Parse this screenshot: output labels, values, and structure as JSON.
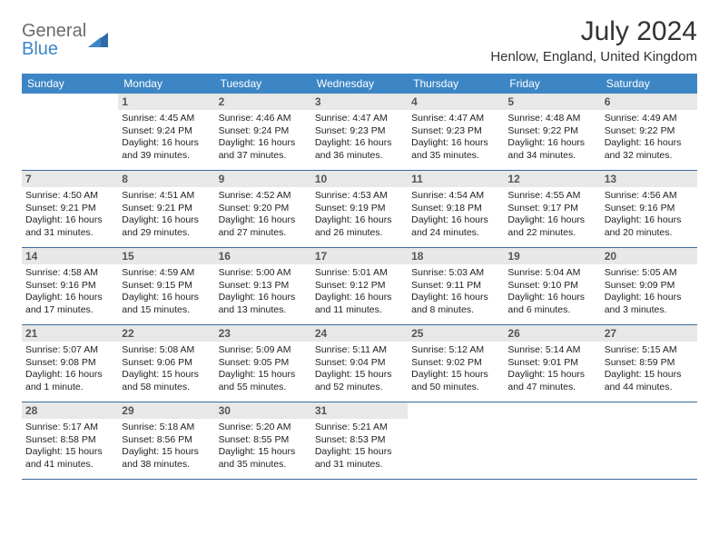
{
  "brand": {
    "name1": "General",
    "name2": "Blue"
  },
  "title": "July 2024",
  "location": "Henlow, England, United Kingdom",
  "colors": {
    "header_bg": "#3d86c6",
    "header_text": "#ffffff",
    "daynum_bg": "#e8e8e8",
    "daynum_text": "#555555",
    "rule": "#3d6a9a",
    "brand_gray": "#6b6b6b",
    "brand_blue": "#3d86c6"
  },
  "dow": [
    "Sunday",
    "Monday",
    "Tuesday",
    "Wednesday",
    "Thursday",
    "Friday",
    "Saturday"
  ],
  "weeks": [
    [
      {
        "n": "",
        "sr": "",
        "ss": "",
        "dl": ""
      },
      {
        "n": "1",
        "sr": "Sunrise: 4:45 AM",
        "ss": "Sunset: 9:24 PM",
        "dl": "Daylight: 16 hours and 39 minutes."
      },
      {
        "n": "2",
        "sr": "Sunrise: 4:46 AM",
        "ss": "Sunset: 9:24 PM",
        "dl": "Daylight: 16 hours and 37 minutes."
      },
      {
        "n": "3",
        "sr": "Sunrise: 4:47 AM",
        "ss": "Sunset: 9:23 PM",
        "dl": "Daylight: 16 hours and 36 minutes."
      },
      {
        "n": "4",
        "sr": "Sunrise: 4:47 AM",
        "ss": "Sunset: 9:23 PM",
        "dl": "Daylight: 16 hours and 35 minutes."
      },
      {
        "n": "5",
        "sr": "Sunrise: 4:48 AM",
        "ss": "Sunset: 9:22 PM",
        "dl": "Daylight: 16 hours and 34 minutes."
      },
      {
        "n": "6",
        "sr": "Sunrise: 4:49 AM",
        "ss": "Sunset: 9:22 PM",
        "dl": "Daylight: 16 hours and 32 minutes."
      }
    ],
    [
      {
        "n": "7",
        "sr": "Sunrise: 4:50 AM",
        "ss": "Sunset: 9:21 PM",
        "dl": "Daylight: 16 hours and 31 minutes."
      },
      {
        "n": "8",
        "sr": "Sunrise: 4:51 AM",
        "ss": "Sunset: 9:21 PM",
        "dl": "Daylight: 16 hours and 29 minutes."
      },
      {
        "n": "9",
        "sr": "Sunrise: 4:52 AM",
        "ss": "Sunset: 9:20 PM",
        "dl": "Daylight: 16 hours and 27 minutes."
      },
      {
        "n": "10",
        "sr": "Sunrise: 4:53 AM",
        "ss": "Sunset: 9:19 PM",
        "dl": "Daylight: 16 hours and 26 minutes."
      },
      {
        "n": "11",
        "sr": "Sunrise: 4:54 AM",
        "ss": "Sunset: 9:18 PM",
        "dl": "Daylight: 16 hours and 24 minutes."
      },
      {
        "n": "12",
        "sr": "Sunrise: 4:55 AM",
        "ss": "Sunset: 9:17 PM",
        "dl": "Daylight: 16 hours and 22 minutes."
      },
      {
        "n": "13",
        "sr": "Sunrise: 4:56 AM",
        "ss": "Sunset: 9:16 PM",
        "dl": "Daylight: 16 hours and 20 minutes."
      }
    ],
    [
      {
        "n": "14",
        "sr": "Sunrise: 4:58 AM",
        "ss": "Sunset: 9:16 PM",
        "dl": "Daylight: 16 hours and 17 minutes."
      },
      {
        "n": "15",
        "sr": "Sunrise: 4:59 AM",
        "ss": "Sunset: 9:15 PM",
        "dl": "Daylight: 16 hours and 15 minutes."
      },
      {
        "n": "16",
        "sr": "Sunrise: 5:00 AM",
        "ss": "Sunset: 9:13 PM",
        "dl": "Daylight: 16 hours and 13 minutes."
      },
      {
        "n": "17",
        "sr": "Sunrise: 5:01 AM",
        "ss": "Sunset: 9:12 PM",
        "dl": "Daylight: 16 hours and 11 minutes."
      },
      {
        "n": "18",
        "sr": "Sunrise: 5:03 AM",
        "ss": "Sunset: 9:11 PM",
        "dl": "Daylight: 16 hours and 8 minutes."
      },
      {
        "n": "19",
        "sr": "Sunrise: 5:04 AM",
        "ss": "Sunset: 9:10 PM",
        "dl": "Daylight: 16 hours and 6 minutes."
      },
      {
        "n": "20",
        "sr": "Sunrise: 5:05 AM",
        "ss": "Sunset: 9:09 PM",
        "dl": "Daylight: 16 hours and 3 minutes."
      }
    ],
    [
      {
        "n": "21",
        "sr": "Sunrise: 5:07 AM",
        "ss": "Sunset: 9:08 PM",
        "dl": "Daylight: 16 hours and 1 minute."
      },
      {
        "n": "22",
        "sr": "Sunrise: 5:08 AM",
        "ss": "Sunset: 9:06 PM",
        "dl": "Daylight: 15 hours and 58 minutes."
      },
      {
        "n": "23",
        "sr": "Sunrise: 5:09 AM",
        "ss": "Sunset: 9:05 PM",
        "dl": "Daylight: 15 hours and 55 minutes."
      },
      {
        "n": "24",
        "sr": "Sunrise: 5:11 AM",
        "ss": "Sunset: 9:04 PM",
        "dl": "Daylight: 15 hours and 52 minutes."
      },
      {
        "n": "25",
        "sr": "Sunrise: 5:12 AM",
        "ss": "Sunset: 9:02 PM",
        "dl": "Daylight: 15 hours and 50 minutes."
      },
      {
        "n": "26",
        "sr": "Sunrise: 5:14 AM",
        "ss": "Sunset: 9:01 PM",
        "dl": "Daylight: 15 hours and 47 minutes."
      },
      {
        "n": "27",
        "sr": "Sunrise: 5:15 AM",
        "ss": "Sunset: 8:59 PM",
        "dl": "Daylight: 15 hours and 44 minutes."
      }
    ],
    [
      {
        "n": "28",
        "sr": "Sunrise: 5:17 AM",
        "ss": "Sunset: 8:58 PM",
        "dl": "Daylight: 15 hours and 41 minutes."
      },
      {
        "n": "29",
        "sr": "Sunrise: 5:18 AM",
        "ss": "Sunset: 8:56 PM",
        "dl": "Daylight: 15 hours and 38 minutes."
      },
      {
        "n": "30",
        "sr": "Sunrise: 5:20 AM",
        "ss": "Sunset: 8:55 PM",
        "dl": "Daylight: 15 hours and 35 minutes."
      },
      {
        "n": "31",
        "sr": "Sunrise: 5:21 AM",
        "ss": "Sunset: 8:53 PM",
        "dl": "Daylight: 15 hours and 31 minutes."
      },
      {
        "n": "",
        "sr": "",
        "ss": "",
        "dl": ""
      },
      {
        "n": "",
        "sr": "",
        "ss": "",
        "dl": ""
      },
      {
        "n": "",
        "sr": "",
        "ss": "",
        "dl": ""
      }
    ]
  ]
}
